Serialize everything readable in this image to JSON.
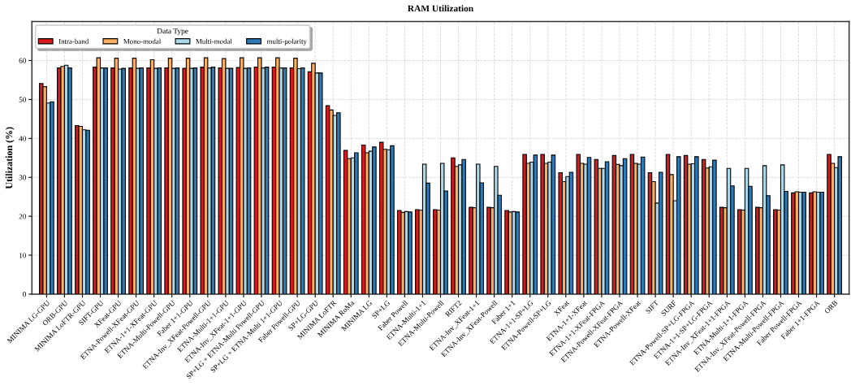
{
  "chart_data": {
    "type": "bar",
    "title": "RAM Utilization",
    "ylabel": "Utilization (%)",
    "legend_title": "Data Type",
    "categories": [
      "MINIMA LG-GPU",
      "ORB-GPU",
      "MINIMA LoFTR-GPU",
      "SIFT-GPU",
      "XFeat-GPU",
      "ETNA-Powell-XFeat-GPU",
      "ETNA-1+1-XFeat-GPU",
      "ETNA-Multi-Powell-GPU",
      "Faber 1+1-GPU",
      "ETNA-Inv_XFeat-Powell-GPU",
      "ETNA-Multi-1+1-GPU",
      "ETNA-Inv_XFeat-1+1-GPU",
      "SP+LG + ETNA-Multi Powell-GPU",
      "SP+LG + ETNA-Multi 1+1-GPU",
      "Faber Powell-GPU",
      "SP+LG-GPU",
      "MINIMA LoFTR",
      "MINIMA RoMa",
      "MINIMA LG",
      "SP+LG",
      "Faber Powell",
      "ETNA-Multi-1+1",
      "ETNA-Multi-Powell",
      "RIFT2",
      "ETNA-Inv_XFeat-1+1",
      "ETNA-Inv_XFeat-Powell",
      "Faber 1+1",
      "ETNA-1+1-SP+LG",
      "ETNA-Powell-SP+LG",
      "XFeat",
      "ETNA-1+1-XFeat",
      "ETNA-1+1-XFeat-FPGA",
      "ETNA-Powell-XFeat-FPGA",
      "ETNA-Powell-XFeat",
      "SIFT",
      "SURF",
      "ETNA-Powell-SP+LG-FPGA",
      "ETNA-1+1-SP+LG-FPGA",
      "ETNA-Inv_XFeat-1+1-FPGA",
      "ETNA-Multi-1+1-FPGA",
      "ETNA-Inv_XFeat-Powell-FPGA",
      "ETNA-Multi-Powell-FPGA",
      "Faber Powell-FPGA",
      "Faber 1+1-FPGA",
      "ORB"
    ],
    "series": [
      {
        "name": "Intra-band",
        "color": "#d7191c",
        "values": [
          54.1,
          58.1,
          43.3,
          58.3,
          58.1,
          58.1,
          58.1,
          58.1,
          58.0,
          58.3,
          58.1,
          58.2,
          58.3,
          58.3,
          58.1,
          57.1,
          48.4,
          36.9,
          38.3,
          39.0,
          21.5,
          21.7,
          21.7,
          35.0,
          22.3,
          22.3,
          21.5,
          35.9,
          35.9,
          31.2,
          35.9,
          34.6,
          35.6,
          35.9,
          31.2,
          35.9,
          35.6,
          34.6,
          22.3,
          21.7,
          22.3,
          21.7,
          26.0,
          26.0,
          35.9
        ]
      },
      {
        "name": "Mono-modal",
        "color": "#fdae61",
        "values": [
          53.3,
          58.5,
          43.1,
          60.7,
          60.6,
          60.6,
          60.2,
          60.6,
          60.6,
          60.7,
          60.5,
          60.7,
          60.7,
          60.7,
          60.6,
          59.3,
          47.3,
          34.8,
          36.3,
          37.2,
          21.0,
          21.6,
          21.6,
          32.8,
          22.2,
          22.2,
          21.1,
          33.6,
          33.6,
          28.9,
          33.6,
          32.3,
          33.3,
          33.6,
          28.9,
          30.7,
          33.4,
          32.4,
          22.2,
          21.6,
          22.2,
          21.6,
          26.3,
          26.3,
          33.6
        ]
      },
      {
        "name": "Multi-modal",
        "color": "#abd9e9",
        "values": [
          49.1,
          58.8,
          42.2,
          58.1,
          57.8,
          58.0,
          58.0,
          58.0,
          58.0,
          58.1,
          58.0,
          58.0,
          58.1,
          58.1,
          57.9,
          56.8,
          45.9,
          35.0,
          36.7,
          37.1,
          21.2,
          33.4,
          33.6,
          33.2,
          33.4,
          32.8,
          21.2,
          33.9,
          33.9,
          30.2,
          33.4,
          32.3,
          33.0,
          33.4,
          23.4,
          24.0,
          33.5,
          32.7,
          32.3,
          32.3,
          33.0,
          33.2,
          26.2,
          26.2,
          32.5
        ]
      },
      {
        "name": "multi-polarity",
        "color": "#2c7bb6",
        "values": [
          49.4,
          58.1,
          42.1,
          58.1,
          58.0,
          58.1,
          58.1,
          58.1,
          58.1,
          58.3,
          58.0,
          58.1,
          58.3,
          58.1,
          58.1,
          56.8,
          46.6,
          36.3,
          37.8,
          38.1,
          21.1,
          28.5,
          26.5,
          34.6,
          28.6,
          25.4,
          21.1,
          35.7,
          35.7,
          31.3,
          35.1,
          34.0,
          34.8,
          35.2,
          31.3,
          35.3,
          35.3,
          34.4,
          27.8,
          27.7,
          25.3,
          26.4,
          26.2,
          26.2,
          35.3
        ]
      }
    ],
    "ylim": [
      0,
      70
    ],
    "yticks": [
      0,
      10,
      20,
      30,
      40,
      50,
      60
    ],
    "grid": true,
    "legend": "top left"
  }
}
